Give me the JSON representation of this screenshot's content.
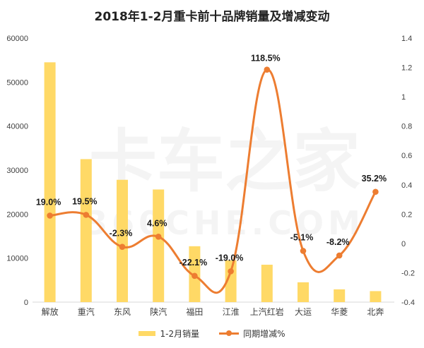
{
  "title": "2018年1-2月重卡前十品牌销量及增减变动",
  "watermark": {
    "cn": "卡车之家",
    "en": "360CHE.COM"
  },
  "colors": {
    "bar": "#FFD966",
    "line": "#ED7D31",
    "grid": "#D9D9D9",
    "text": "#404040"
  },
  "chart_data": {
    "type": "bar",
    "categories": [
      "解放",
      "重汽",
      "东风",
      "陕汽",
      "福田",
      "江淮",
      "上汽红岩",
      "大运",
      "华菱",
      "北奔"
    ],
    "series": [
      {
        "name": "1-2月销量",
        "type": "bar",
        "axis": "left",
        "values": [
          54500,
          32500,
          27800,
          25600,
          12700,
          9500,
          8500,
          4500,
          2900,
          2500
        ]
      },
      {
        "name": "同期增减%",
        "type": "line",
        "axis": "right",
        "values": [
          0.19,
          0.195,
          -0.023,
          0.046,
          -0.221,
          -0.19,
          1.185,
          -0.051,
          -0.082,
          0.352
        ],
        "labels": [
          "19.0%",
          "19.5%",
          "-2.3%",
          "4.6%",
          "-22.1%",
          "-19.0%",
          "118.5%",
          "-5.1%",
          "-8.2%",
          "35.2%"
        ]
      }
    ],
    "y_left": {
      "min": 0,
      "max": 60000,
      "ticks": [
        "0",
        "10000",
        "20000",
        "30000",
        "40000",
        "50000",
        "60000"
      ]
    },
    "y_right": {
      "min": -0.4,
      "max": 1.4,
      "ticks": [
        "-0.4",
        "-0.2",
        "0",
        "0.2",
        "0.4",
        "0.6",
        "0.8",
        "1",
        "1.2",
        "1.4"
      ]
    },
    "grid": false,
    "legend": "bottom"
  }
}
